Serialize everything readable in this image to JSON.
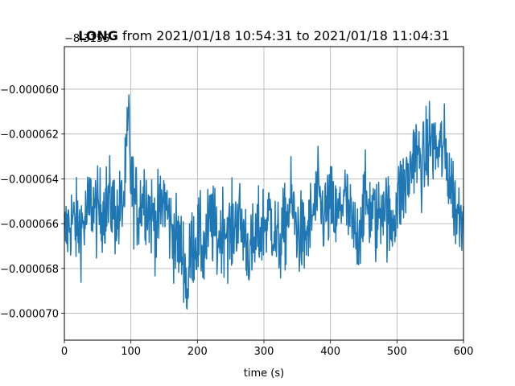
{
  "chart_data": {
    "type": "line",
    "title": "LONG from 2021/01/18 10:54:31 to 2021/01/18 11:04:31",
    "title_bold_part": "LONG",
    "title_rest": " from 2021/01/18 10:54:31 to 2021/01/18 11:04:31",
    "axis_offset_label": "−8.3155",
    "axis_offset_value": -8.3155,
    "xlabel": "time (s)",
    "ylabel": "",
    "xlim": [
      0,
      600
    ],
    "ylim": [
      -7.12e-05,
      -5.81e-05
    ],
    "grid": true,
    "xticks": [
      0,
      100,
      200,
      300,
      400,
      500,
      600
    ],
    "xtick_labels": [
      "0",
      "100",
      "200",
      "300",
      "400",
      "500",
      "600"
    ],
    "yticks": [
      -7e-05,
      -6.8e-05,
      -6.6e-05,
      -6.4e-05,
      -6.2e-05,
      -6e-05
    ],
    "ytick_labels": [
      "−0.000070",
      "−0.000068",
      "−0.000066",
      "−0.000064",
      "−0.000062",
      "−0.000060"
    ],
    "series": [
      {
        "color": "#1f77b4",
        "x": [
          0,
          10,
          20,
          30,
          40,
          50,
          60,
          70,
          80,
          90,
          97,
          100,
          110,
          120,
          130,
          140,
          150,
          160,
          170,
          180,
          185,
          190,
          200,
          210,
          220,
          230,
          240,
          250,
          260,
          270,
          280,
          290,
          300,
          310,
          320,
          330,
          340,
          350,
          360,
          370,
          380,
          390,
          400,
          410,
          420,
          430,
          440,
          450,
          460,
          470,
          480,
          490,
          500,
          510,
          520,
          525,
          530,
          540,
          550,
          560,
          570,
          580,
          590,
          600
        ],
        "y": [
          -6.66e-05,
          -6.58e-05,
          -6.62e-05,
          -6.6e-05,
          -6.5e-05,
          -6.56e-05,
          -6.52e-05,
          -6.5e-05,
          -6.58e-05,
          -6.48e-05,
          -6.12e-05,
          -6.42e-05,
          -6.54e-05,
          -6.46e-05,
          -6.56e-05,
          -6.6e-05,
          -6.48e-05,
          -6.62e-05,
          -6.68e-05,
          -6.75e-05,
          -6.92e-05,
          -6.71e-05,
          -6.66e-05,
          -6.72e-05,
          -6.58e-05,
          -6.68e-05,
          -6.6e-05,
          -6.66e-05,
          -6.56e-05,
          -6.64e-05,
          -6.74e-05,
          -6.66e-05,
          -6.6e-05,
          -6.56e-05,
          -6.7e-05,
          -6.64e-05,
          -6.5e-05,
          -6.62e-05,
          -6.68e-05,
          -6.6e-05,
          -6.48e-05,
          -6.56e-05,
          -6.52e-05,
          -6.6e-05,
          -6.46e-05,
          -6.6e-05,
          -6.68e-05,
          -6.5e-05,
          -6.54e-05,
          -6.6e-05,
          -6.48e-05,
          -6.62e-05,
          -6.5e-05,
          -6.44e-05,
          -6.38e-05,
          -6.26e-05,
          -6.3e-05,
          -6.34e-05,
          -6.22e-05,
          -6.28e-05,
          -6.26e-05,
          -6.4e-05,
          -6.56e-05,
          -6.52e-05
        ]
      }
    ]
  }
}
